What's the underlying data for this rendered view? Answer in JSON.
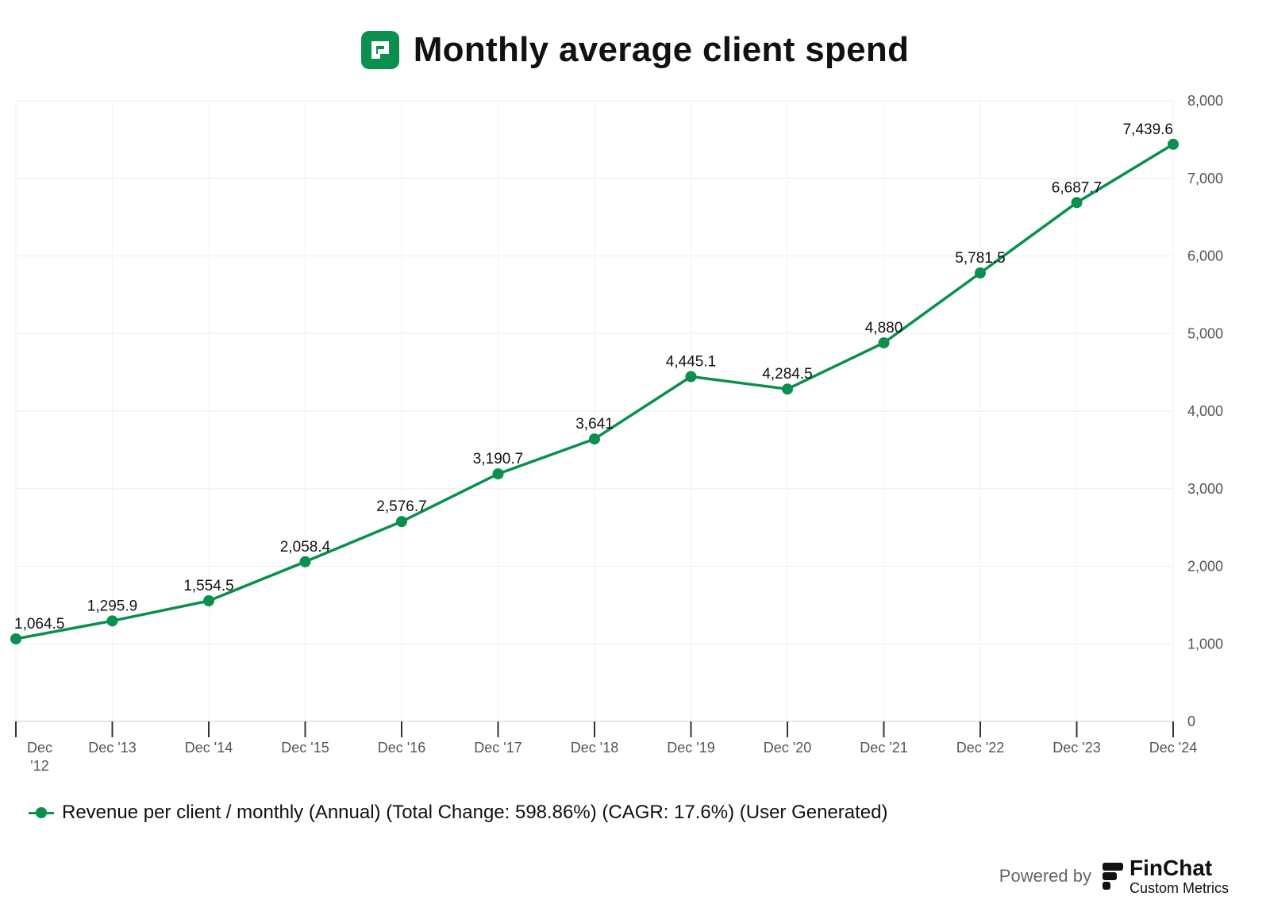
{
  "header": {
    "title": "Monthly average client spend",
    "logo_icon": "paylocity-logo-icon",
    "brand_color": "#0a8f4f"
  },
  "legend": {
    "label": "Revenue per client / monthly (Annual) (Total Change: 598.86%) (CAGR: 17.6%) (User Generated)"
  },
  "footer": {
    "powered_by": "Powered by",
    "brand_name": "FinChat",
    "brand_sub": "Custom Metrics",
    "brand_icon": "finchat-logo-icon"
  },
  "chart_data": {
    "type": "line",
    "title": "Monthly average client spend",
    "categories": [
      "Dec '12",
      "Dec '13",
      "Dec '14",
      "Dec '15",
      "Dec '16",
      "Dec '17",
      "Dec '18",
      "Dec '19",
      "Dec '20",
      "Dec '21",
      "Dec '22",
      "Dec '23",
      "Dec '24"
    ],
    "series": [
      {
        "name": "Revenue per client / monthly (Annual) (Total Change: 598.86%) (CAGR: 17.6%) (User Generated)",
        "values": [
          1064.5,
          1295.9,
          1554.5,
          2058.4,
          2576.7,
          3190.7,
          3641,
          4445.1,
          4284.5,
          4880,
          5781.5,
          6687.7,
          7439.6
        ],
        "labels": [
          "1,064.5",
          "1,295.9",
          "1,554.5",
          "2,058.4",
          "2,576.7",
          "3,190.7",
          "3,641",
          "4,445.1",
          "4,284.5",
          "4,880",
          "5,781.5",
          "6,687.7",
          "7,439.6"
        ],
        "color": "#0a8f4f"
      }
    ],
    "ylim": [
      0,
      8000
    ],
    "yticks": [
      0,
      1000,
      2000,
      3000,
      4000,
      5000,
      6000,
      7000,
      8000
    ],
    "ytick_labels": [
      "0",
      "1,000",
      "2,000",
      "3,000",
      "4,000",
      "5,000",
      "6,000",
      "7,000",
      "8,000"
    ],
    "y_axis_side": "right",
    "grid": true,
    "legend_position": "bottom-left"
  }
}
